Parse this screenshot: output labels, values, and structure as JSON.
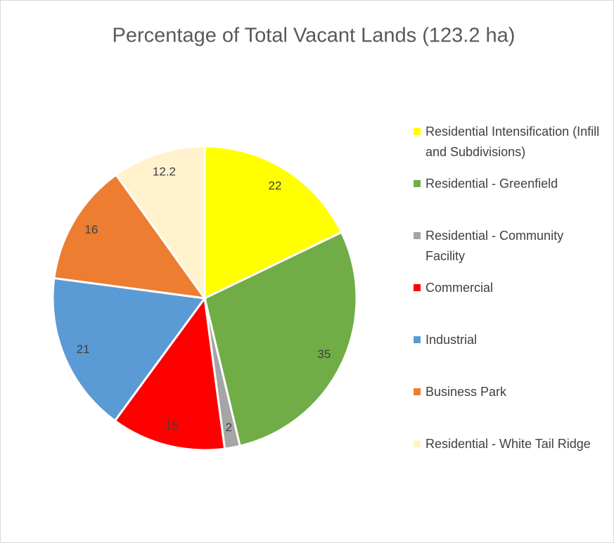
{
  "chart_data": {
    "type": "pie",
    "title": "Percentage of Total Vacant Lands (123.2 ha)",
    "categories": [
      "Residential Intensification (Infill and Subdivisions)",
      "Residential - Greenfield",
      "Residential - Community Facility",
      "Commercial",
      "Industrial",
      "Business Park",
      "Residential - White Tail Ridge"
    ],
    "values": [
      22,
      35,
      2,
      15,
      21,
      16,
      12.2
    ],
    "colors": [
      "#ffff00",
      "#70ad47",
      "#a5a5a5",
      "#ff0000",
      "#5b9bd5",
      "#ed7d31",
      "#fff2cc"
    ],
    "legend": "right"
  }
}
